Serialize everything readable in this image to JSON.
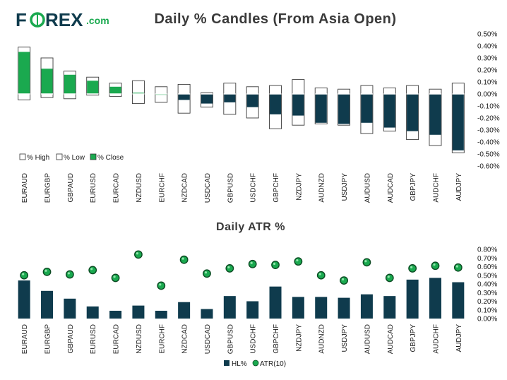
{
  "logo": {
    "text_prefix": "F",
    "text_rest": "REX",
    "suffix": ".com"
  },
  "colors": {
    "navy": "#0f3b4d",
    "green": "#1aa94f",
    "logo_dark": "#0f3b4d",
    "logo_green": "#1aa94f",
    "axis_text": "#1b1b1b",
    "grid": "#e3e3e3"
  },
  "chart_data": [
    {
      "type": "candlestick",
      "title": "Daily % Candles (From Asia Open)",
      "categories": [
        "EURAUD",
        "EURGBP",
        "GBPAUD",
        "EURUSD",
        "EURCAD",
        "NZDUSD",
        "EURCHF",
        "NZDCAD",
        "USDCAD",
        "GBPUSD",
        "USDCHF",
        "GBPCHF",
        "NZDJPY",
        "AUDNZD",
        "USDJPY",
        "AUDUSD",
        "AUDCAD",
        "GBPJPY",
        "AUDCHF",
        "AUDJPY"
      ],
      "high": [
        0.39,
        0.3,
        0.19,
        0.14,
        0.09,
        0.11,
        0.06,
        0.08,
        0.01,
        0.09,
        0.06,
        0.07,
        0.12,
        0.05,
        0.04,
        0.07,
        0.05,
        0.07,
        0.04,
        0.09
      ],
      "low": [
        -0.05,
        -0.03,
        -0.04,
        -0.01,
        -0.02,
        -0.08,
        -0.07,
        -0.16,
        -0.11,
        -0.17,
        -0.2,
        -0.29,
        -0.26,
        -0.25,
        -0.26,
        -0.33,
        -0.31,
        -0.38,
        -0.43,
        -0.49
      ],
      "close": [
        0.35,
        0.21,
        0.16,
        0.11,
        0.06,
        0.01,
        0.0,
        -0.05,
        -0.08,
        -0.07,
        -0.11,
        -0.17,
        -0.18,
        -0.24,
        -0.25,
        -0.24,
        -0.28,
        -0.31,
        -0.34,
        -0.47
      ],
      "ylim": [
        -0.6,
        0.5
      ],
      "yticks": [
        "0.50%",
        "0.40%",
        "0.30%",
        "0.20%",
        "0.10%",
        "0.00%",
        "-0.10%",
        "-0.20%",
        "-0.30%",
        "-0.40%",
        "-0.50%",
        "-0.60%"
      ],
      "legend": [
        "% High",
        "% Low",
        "% Close"
      ]
    },
    {
      "type": "bar+scatter",
      "title": "Daily ATR %",
      "categories": [
        "EURAUD",
        "EURGBP",
        "GBPAUD",
        "EURUSD",
        "EURCAD",
        "NZDUSD",
        "EURCHF",
        "NZDCAD",
        "USDCAD",
        "GBPUSD",
        "USDCHF",
        "GBPCHF",
        "NZDJPY",
        "AUDNZD",
        "USDJPY",
        "AUDUSD",
        "AUDCAD",
        "GBPJPY",
        "AUDCHF",
        "AUDJPY"
      ],
      "series": [
        {
          "name": "HL%",
          "kind": "bar",
          "values": [
            0.44,
            0.32,
            0.23,
            0.14,
            0.09,
            0.15,
            0.09,
            0.19,
            0.11,
            0.26,
            0.2,
            0.37,
            0.25,
            0.25,
            0.24,
            0.28,
            0.26,
            0.45,
            0.47,
            0.42
          ]
        },
        {
          "name": "ATR(10)",
          "kind": "dot",
          "values": [
            0.5,
            0.54,
            0.51,
            0.56,
            0.47,
            0.74,
            0.38,
            0.68,
            0.52,
            0.58,
            0.63,
            0.62,
            0.66,
            0.5,
            0.44,
            0.65,
            0.47,
            0.58,
            0.61,
            0.59
          ]
        }
      ],
      "ylim": [
        0,
        0.8
      ],
      "yticks": [
        "0.80%",
        "0.70%",
        "0.60%",
        "0.50%",
        "0.40%",
        "0.30%",
        "0.20%",
        "0.10%",
        "0.00%"
      ],
      "legend": [
        "HL%",
        "ATR(10)"
      ]
    }
  ]
}
